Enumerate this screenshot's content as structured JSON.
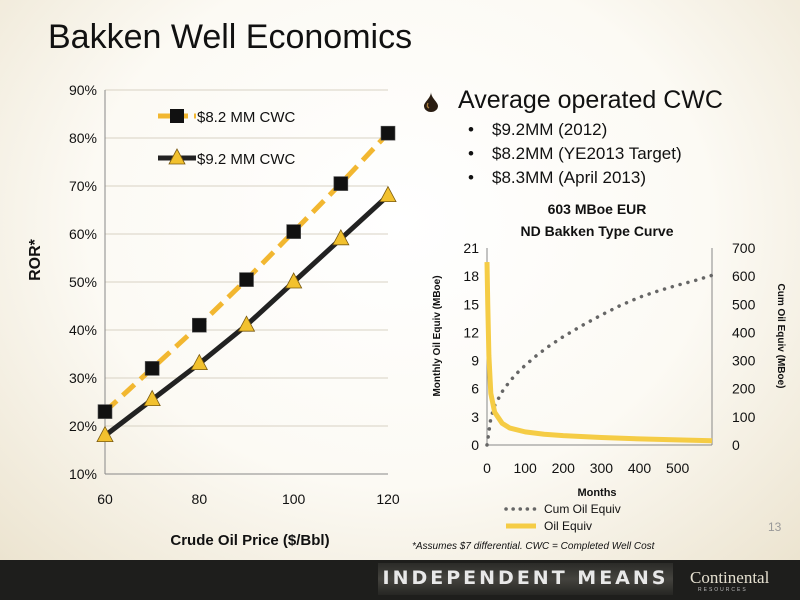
{
  "slide": {
    "title": "Bakken Well Economics",
    "bullet_main": "Average operated CWC",
    "bullets": [
      "$9.2MM (2012)",
      "$8.2MM (YE2013 Target)",
      "$8.3MM (April 2013)"
    ],
    "footnote": "*Assumes $7 differential.  CWC = Completed Well Cost",
    "page_number": "13",
    "banner": "INDEPENDENT MEANS",
    "logo": "Continental",
    "logo_sub": "RESOURCES",
    "icons": [
      "oil-drop-icon"
    ]
  },
  "chart_data": [
    {
      "type": "line",
      "title": "",
      "xlabel": "Crude Oil Price ($/Bbl)",
      "ylabel": "ROR*",
      "x": [
        60,
        70,
        80,
        90,
        100,
        110,
        120
      ],
      "xticks": [
        "60",
        "80",
        "100",
        "120"
      ],
      "xlim": [
        60,
        120
      ],
      "ylim": [
        10,
        90
      ],
      "yticks": [
        "10%",
        "20%",
        "30%",
        "40%",
        "50%",
        "60%",
        "70%",
        "80%",
        "90%"
      ],
      "legend_position": "top-left",
      "series": [
        {
          "name": "$8.2 MM CWC",
          "values": [
            23,
            32,
            41,
            50.5,
            60.5,
            70.5,
            81
          ],
          "color": "#f2b730",
          "line_color": "#f2b730",
          "marker": "square",
          "marker_color": "#111111",
          "dashed": true
        },
        {
          "name": "$9.2 MM CWC",
          "values": [
            18,
            25.5,
            33,
            41,
            50,
            59,
            68
          ],
          "color": "#222222",
          "line_color": "#222222",
          "marker": "triangle",
          "marker_color": "#f2c12e",
          "dashed": false
        }
      ]
    },
    {
      "type": "line",
      "title": "603 MBoe EUR",
      "subtitle": "ND Bakken Type Curve",
      "xlabel": "Months",
      "ylabel_left": "Monthly Oil Equiv (MBoe)",
      "ylabel_right": "Cum Oil Equiv (MBoe)",
      "xlim": [
        0,
        590
      ],
      "xticks": [
        "0",
        "100",
        "200",
        "300",
        "400",
        "500"
      ],
      "ylim_left": [
        0,
        21
      ],
      "yticks_left": [
        "0",
        "3",
        "6",
        "9",
        "12",
        "15",
        "18",
        "21"
      ],
      "ylim_right": [
        0,
        700
      ],
      "yticks_right": [
        "0",
        "100",
        "200",
        "300",
        "400",
        "500",
        "600",
        "700"
      ],
      "legend_position": "bottom",
      "series": [
        {
          "name": "Cum Oil Equiv",
          "axis": "right",
          "style": "dotted",
          "color": "#666666",
          "x": [
            0,
            10,
            20,
            40,
            60,
            80,
            100,
            130,
            160,
            200,
            250,
            300,
            350,
            400,
            450,
            500,
            550,
            590
          ],
          "values": [
            0,
            95,
            140,
            190,
            227,
            257,
            283,
            318,
            349,
            385,
            425,
            462,
            496,
            525,
            548,
            568,
            586,
            603
          ]
        },
        {
          "name": "Oil Equiv",
          "axis": "left",
          "style": "solid",
          "color": "#f5cc45",
          "x": [
            0,
            2,
            5,
            10,
            20,
            40,
            60,
            100,
            150,
            200,
            300,
            400,
            500,
            590
          ],
          "values": [
            19.5,
            15,
            9.5,
            5.5,
            3.5,
            2.3,
            1.8,
            1.4,
            1.15,
            1.0,
            0.8,
            0.65,
            0.55,
            0.45
          ]
        }
      ]
    }
  ]
}
